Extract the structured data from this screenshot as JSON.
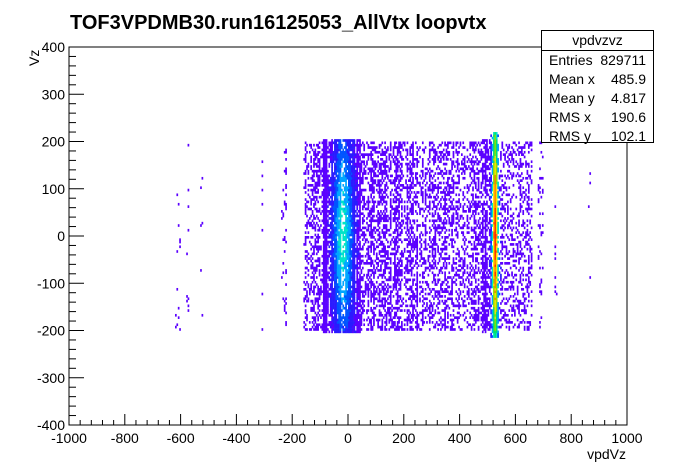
{
  "chart_data": {
    "type": "heatmap",
    "title": "TOF3VPDMB30.run16125053_AllVtx loopvtx",
    "xlabel": "vpdVz",
    "ylabel": "Vz",
    "xlim": [
      -1000,
      1000
    ],
    "ylim": [
      -400,
      400
    ],
    "x_ticks": [
      "-1000",
      "-800",
      "-600",
      "-400",
      "-200",
      "0",
      "200",
      "400",
      "600",
      "800",
      "1000"
    ],
    "y_ticks": [
      "-400",
      "-300",
      "-200",
      "-100",
      "0",
      "100",
      "200",
      "300",
      "400"
    ],
    "color_palette": [
      "#5b00ff",
      "#2b1bff",
      "#0055ff",
      "#00a6ff",
      "#00e5c8",
      "#00e070",
      "#8fe000",
      "#ffe000",
      "#ff7a00",
      "#ff1a00"
    ],
    "regions": [
      {
        "x_range": [
          -620,
          -600
        ],
        "y_range": [
          -200,
          180
        ],
        "density": 0.05
      },
      {
        "x_range": [
          -580,
          -570
        ],
        "y_range": [
          -200,
          200
        ],
        "density": 0.05
      },
      {
        "x_range": [
          -530,
          -520
        ],
        "y_range": [
          -190,
          130
        ],
        "density": 0.05
      },
      {
        "x_range": [
          -310,
          -300
        ],
        "y_range": [
          -200,
          190
        ],
        "density": 0.05
      },
      {
        "x_range": [
          -240,
          -220
        ],
        "y_range": [
          -190,
          190
        ],
        "density": 0.15
      },
      {
        "x_range": [
          -160,
          -90
        ],
        "y_range": [
          -200,
          200
        ],
        "density": 0.45
      },
      {
        "x_range": [
          -90,
          50
        ],
        "y_range": [
          -205,
          205
        ],
        "density": 1.0
      },
      {
        "x_range": [
          50,
          250
        ],
        "y_range": [
          -200,
          200
        ],
        "density": 0.55
      },
      {
        "x_range": [
          250,
          480
        ],
        "y_range": [
          -200,
          200
        ],
        "density": 0.45
      },
      {
        "x_range": [
          480,
          510
        ],
        "y_range": [
          -205,
          205
        ],
        "density": 0.8
      },
      {
        "x_range": [
          510,
          540
        ],
        "y_range": [
          -215,
          220
        ],
        "density": 1.0
      },
      {
        "x_range": [
          540,
          660
        ],
        "y_range": [
          -200,
          200
        ],
        "density": 0.35
      },
      {
        "x_range": [
          680,
          700
        ],
        "y_range": [
          -200,
          200
        ],
        "density": 0.15
      },
      {
        "x_range": [
          740,
          750
        ],
        "y_range": [
          -190,
          190
        ],
        "density": 0.1
      },
      {
        "x_range": [
          860,
          870
        ],
        "y_range": [
          -140,
          170
        ],
        "density": 0.05
      }
    ],
    "hotspots": [
      {
        "x": -20,
        "y": 0,
        "sx": 25,
        "sy": 150,
        "peak": 0.45
      },
      {
        "x": 525,
        "y": 0,
        "sx": 8,
        "sy": 210,
        "peak": 1.0
      }
    ]
  },
  "stats": {
    "name": "vpdvzvz",
    "rows": [
      {
        "label": "Entries",
        "value": "829711"
      },
      {
        "label": "Mean x",
        "value": "485.9"
      },
      {
        "label": "Mean y",
        "value": "4.817"
      },
      {
        "label": "RMS x",
        "value": "190.6"
      },
      {
        "label": "RMS y",
        "value": "102.1"
      }
    ]
  }
}
